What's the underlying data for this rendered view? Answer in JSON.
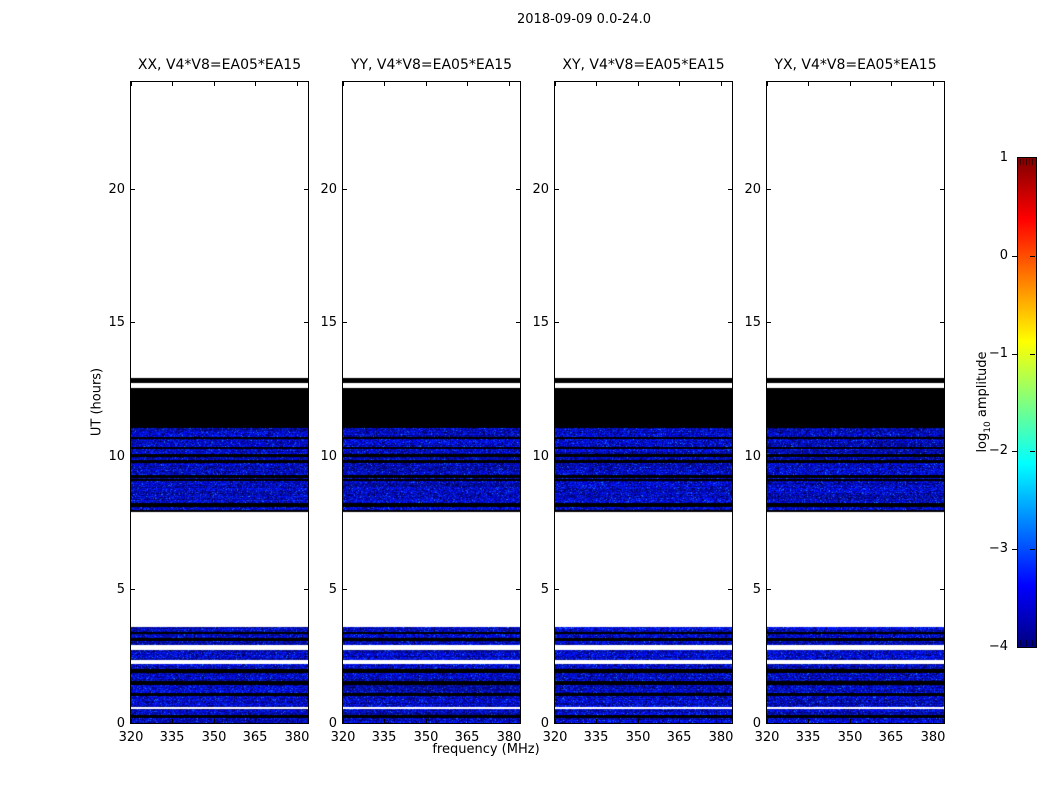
{
  "figure": {
    "title": "2018-09-09 0.0-24.0"
  },
  "chart_data": {
    "type": "heatmap",
    "title": "2018-09-09 0.0-24.0",
    "panels": [
      {
        "key": "xx",
        "title": "XX, V4*V8=EA05*EA15"
      },
      {
        "key": "yy",
        "title": "YY, V4*V8=EA05*EA15"
      },
      {
        "key": "xy",
        "title": "XY, V4*V8=EA05*EA15"
      },
      {
        "key": "yx",
        "title": "YX, V4*V8=EA05*EA15"
      }
    ],
    "xaxis": {
      "label": "frequency (MHz)",
      "ticks": [
        320,
        335,
        350,
        365,
        380
      ],
      "range": [
        320,
        384
      ]
    },
    "yaxis": {
      "label": "UT (hours)",
      "ticks": [
        0,
        5,
        10,
        15,
        20
      ],
      "range": [
        0,
        24
      ]
    },
    "colorbar": {
      "label_text": "log",
      "label_sub": "10",
      "label_rest": " amplitude",
      "ticks": [
        1,
        0,
        -1,
        -2,
        -3,
        -4
      ],
      "range": [
        -4,
        1
      ],
      "colormap": "jet",
      "jet_stops_top_to_bottom": [
        "#7F0000",
        "#FF0000",
        "#FFFF00",
        "#00FFFF",
        "#0000FF",
        "#00007F"
      ]
    },
    "noise_value_range": [
      -4,
      -2.8
    ],
    "time_regions": [
      {
        "type": "noise",
        "from": 0.0,
        "to": 3.6
      },
      {
        "type": "black",
        "from": 0.19,
        "to": 0.3
      },
      {
        "type": "white",
        "from": 0.52,
        "to": 0.6
      },
      {
        "type": "black",
        "from": 1.01,
        "to": 1.12
      },
      {
        "type": "black",
        "from": 1.42,
        "to": 1.57
      },
      {
        "type": "black",
        "from": 1.87,
        "to": 2.02
      },
      {
        "type": "white",
        "from": 2.21,
        "to": 2.36
      },
      {
        "type": "white",
        "from": 2.73,
        "to": 2.92
      },
      {
        "type": "black",
        "from": 3.07,
        "to": 3.18
      },
      {
        "type": "black",
        "from": 3.33,
        "to": 3.41
      },
      {
        "type": "noise",
        "from": 7.9,
        "to": 11.05
      },
      {
        "type": "black",
        "from": 7.9,
        "to": 7.98
      },
      {
        "type": "black",
        "from": 8.09,
        "to": 8.24
      },
      {
        "type": "black",
        "from": 9.06,
        "to": 9.14
      },
      {
        "type": "black",
        "from": 9.18,
        "to": 9.29
      },
      {
        "type": "black",
        "from": 9.74,
        "to": 9.85
      },
      {
        "type": "black",
        "from": 9.96,
        "to": 10.07
      },
      {
        "type": "black",
        "from": 10.26,
        "to": 10.34
      },
      {
        "type": "black",
        "from": 10.64,
        "to": 10.71
      },
      {
        "type": "black",
        "from": 11.05,
        "to": 12.55
      },
      {
        "type": "white",
        "from": 12.55,
        "to": 12.73
      },
      {
        "type": "black",
        "from": 12.73,
        "to": 12.92
      }
    ]
  }
}
